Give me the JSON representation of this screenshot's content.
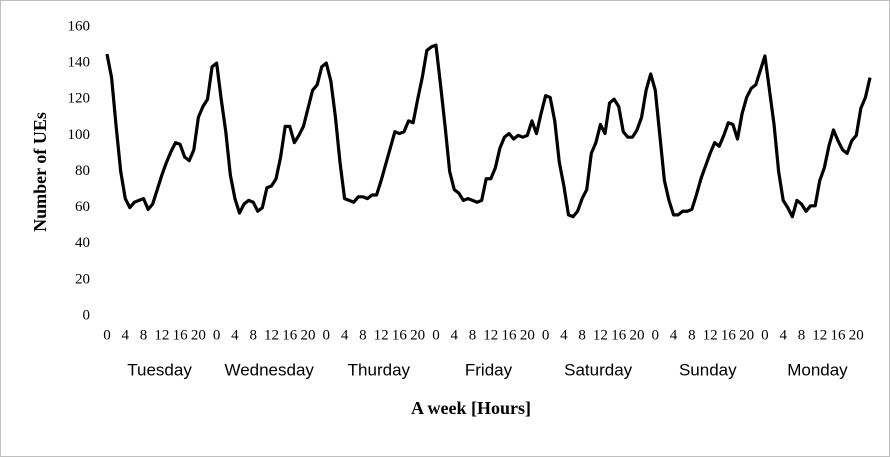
{
  "chart_data": {
    "type": "line",
    "x_label": "A week [Hours]",
    "y_label": "Number of UEs",
    "days": [
      "Tuesday",
      "Wednesday",
      "Thurday",
      "Friday",
      "Saturday",
      "Sunday",
      "Monday"
    ],
    "categories": [
      "0",
      null,
      null,
      null,
      "4",
      null,
      null,
      null,
      "8",
      null,
      null,
      null,
      "12",
      null,
      null,
      null,
      "16",
      null,
      null,
      null,
      "20",
      null,
      null,
      null,
      "0",
      null,
      null,
      null,
      "4",
      null,
      null,
      null,
      "8",
      null,
      null,
      null,
      "12",
      null,
      null,
      null,
      "16",
      null,
      null,
      null,
      "20",
      null,
      null,
      null,
      "0",
      null,
      null,
      null,
      "4",
      null,
      null,
      null,
      "8",
      null,
      null,
      null,
      "12",
      null,
      null,
      null,
      "16",
      null,
      null,
      null,
      "20",
      null,
      null,
      null,
      "0",
      null,
      null,
      null,
      "4",
      null,
      null,
      null,
      "8",
      null,
      null,
      null,
      "12",
      null,
      null,
      null,
      "16",
      null,
      null,
      null,
      "20",
      null,
      null,
      null,
      "0",
      null,
      null,
      null,
      "4",
      null,
      null,
      null,
      "8",
      null,
      null,
      null,
      "12",
      null,
      null,
      null,
      "16",
      null,
      null,
      null,
      "20",
      null,
      null,
      null,
      "0",
      null,
      null,
      null,
      "4",
      null,
      null,
      null,
      "8",
      null,
      null,
      null,
      "12",
      null,
      null,
      null,
      "16",
      null,
      null,
      null,
      "20",
      null,
      null,
      null,
      "0",
      null,
      null,
      null,
      "4",
      null,
      null,
      null,
      "8",
      null,
      null,
      null,
      "12",
      null,
      null,
      null,
      "16",
      null,
      null,
      null,
      "20",
      null,
      null,
      null
    ],
    "series": [
      {
        "color": "#000000",
        "values": [
          145,
          132,
          105,
          80,
          65,
          60,
          63,
          64,
          65,
          59,
          62,
          70,
          78,
          85,
          91,
          96,
          95,
          88,
          86,
          92,
          110,
          116,
          120,
          138,
          140,
          120,
          102,
          78,
          65,
          57,
          62,
          64,
          63,
          58,
          60,
          71,
          72,
          76,
          88,
          105,
          105,
          96,
          100,
          105,
          115,
          125,
          128,
          138,
          140,
          130,
          110,
          85,
          65,
          64,
          63,
          66,
          66,
          65,
          67,
          67,
          75,
          84,
          93,
          102,
          101,
          102,
          108,
          107,
          120,
          132,
          147,
          149,
          150,
          128,
          105,
          80,
          70,
          68,
          64,
          65,
          64,
          63,
          64,
          76,
          76,
          82,
          93,
          99,
          101,
          98,
          100,
          99,
          100,
          108,
          101,
          112,
          122,
          121,
          108,
          85,
          72,
          56,
          55,
          58,
          65,
          70,
          90,
          96,
          106,
          101,
          118,
          120,
          116,
          102,
          99,
          99,
          103,
          110,
          125,
          134,
          125,
          100,
          75,
          64,
          56,
          56,
          58,
          58,
          59,
          67,
          76,
          83,
          90,
          96,
          94,
          100,
          107,
          106,
          98,
          112,
          121,
          126,
          128,
          136,
          144,
          125,
          106,
          80,
          64,
          60,
          55,
          64,
          62,
          58,
          61,
          61,
          75,
          82,
          94,
          103,
          97,
          92,
          90,
          97,
          100,
          115,
          121,
          132
        ]
      }
    ],
    "ylim": [
      0,
      160
    ],
    "yticks": [
      0,
      20,
      40,
      60,
      80,
      100,
      120,
      140,
      160
    ],
    "grid": false
  }
}
